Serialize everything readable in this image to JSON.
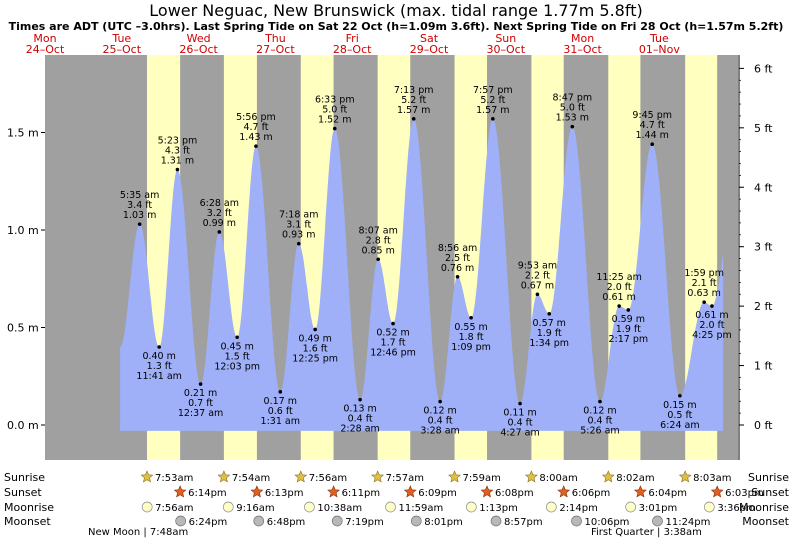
{
  "title": "Lower Neguac, New Brunswick (max. tidal range 1.77m 5.8ft)",
  "subtitle": "Times are ADT (UTC –3.0hrs). Last Spring Tide on Sat 22 Oct (h=1.09m 3.6ft). Next Spring Tide on Fri 28 Oct (h=1.57m 5.2ft)",
  "days": [
    {
      "name": "Mon",
      "date": "24–Oct"
    },
    {
      "name": "Tue",
      "date": "25–Oct"
    },
    {
      "name": "Wed",
      "date": "26–Oct"
    },
    {
      "name": "Thu",
      "date": "27–Oct"
    },
    {
      "name": "Fri",
      "date": "28–Oct"
    },
    {
      "name": "Sat",
      "date": "29–Oct"
    },
    {
      "name": "Sun",
      "date": "30–Oct"
    },
    {
      "name": "Mon",
      "date": "31–Oct"
    },
    {
      "name": "Tue",
      "date": "01–Nov"
    }
  ],
  "chart_data": {
    "type": "area",
    "x_unit": "hours from Mon 24-Oct 00:00",
    "ylim_m": [
      -0.2,
      1.9
    ],
    "y_ticks_m": [
      "0.0 m",
      "0.5 m",
      "1.0 m",
      "1.5 m"
    ],
    "y_ticks_ft": [
      "0 ft",
      "1 ft",
      "2 ft",
      "3 ft",
      "4 ft",
      "5 ft",
      "6 ft"
    ],
    "colors": {
      "day": "#ffffc0",
      "night": "#a0a0a0",
      "water": "#9fb0f8"
    },
    "tides": [
      {
        "t": 29.58,
        "h": 1.03,
        "time": "5:35 am",
        "ft": "3.4 ft",
        "m": "1.03 m",
        "type": "high"
      },
      {
        "t": 35.68,
        "h": 0.4,
        "time": "11:41 am",
        "ft": "1.3 ft",
        "m": "0.40 m",
        "type": "low"
      },
      {
        "t": 41.38,
        "h": 1.31,
        "time": "5:23 pm",
        "ft": "4.3 ft",
        "m": "1.31 m",
        "type": "high"
      },
      {
        "t": 48.62,
        "h": 0.21,
        "time": "12:37 am",
        "ft": "0.7 ft",
        "m": "0.21 m",
        "type": "low"
      },
      {
        "t": 54.47,
        "h": 0.99,
        "time": "6:28 am",
        "ft": "3.2 ft",
        "m": "0.99 m",
        "type": "high"
      },
      {
        "t": 60.05,
        "h": 0.45,
        "time": "12:03 pm",
        "ft": "1.5 ft",
        "m": "0.45 m",
        "type": "low"
      },
      {
        "t": 65.93,
        "h": 1.43,
        "time": "5:56 pm",
        "ft": "4.7 ft",
        "m": "1.43 m",
        "type": "high"
      },
      {
        "t": 73.52,
        "h": 0.17,
        "time": "1:31 am",
        "ft": "0.6 ft",
        "m": "0.17 m",
        "type": "low"
      },
      {
        "t": 79.3,
        "h": 0.93,
        "time": "7:18 am",
        "ft": "3.1 ft",
        "m": "0.93 m",
        "type": "high"
      },
      {
        "t": 84.42,
        "h": 0.49,
        "time": "12:25 pm",
        "ft": "1.6 ft",
        "m": "0.49 m",
        "type": "low"
      },
      {
        "t": 90.55,
        "h": 1.52,
        "time": "6:33 pm",
        "ft": "5.0 ft",
        "m": "1.52 m",
        "type": "high"
      },
      {
        "t": 98.47,
        "h": 0.13,
        "time": "2:28 am",
        "ft": "0.4 ft",
        "m": "0.13 m",
        "type": "low"
      },
      {
        "t": 104.12,
        "h": 0.85,
        "time": "8:07 am",
        "ft": "2.8 ft",
        "m": "0.85 m",
        "type": "high"
      },
      {
        "t": 108.77,
        "h": 0.52,
        "time": "12:46 pm",
        "ft": "1.7 ft",
        "m": "0.52 m",
        "type": "low"
      },
      {
        "t": 115.22,
        "h": 1.57,
        "time": "7:13 pm",
        "ft": "5.2 ft",
        "m": "1.57 m",
        "type": "high"
      },
      {
        "t": 123.47,
        "h": 0.12,
        "time": "3:28 am",
        "ft": "0.4 ft",
        "m": "0.12 m",
        "type": "low"
      },
      {
        "t": 128.93,
        "h": 0.76,
        "time": "8:56 am",
        "ft": "2.5 ft",
        "m": "0.76 m",
        "type": "high"
      },
      {
        "t": 133.15,
        "h": 0.55,
        "time": "1:09 pm",
        "ft": "1.8 ft",
        "m": "0.55 m",
        "type": "low"
      },
      {
        "t": 139.95,
        "h": 1.57,
        "time": "7:57 pm",
        "ft": "5.2 ft",
        "m": "1.57 m",
        "type": "high"
      },
      {
        "t": 148.45,
        "h": 0.11,
        "time": "4:27 am",
        "ft": "0.4 ft",
        "m": "0.11 m",
        "type": "low"
      },
      {
        "t": 153.88,
        "h": 0.67,
        "time": "9:53 am",
        "ft": "2.2 ft",
        "m": "0.67 m",
        "type": "high"
      },
      {
        "t": 157.57,
        "h": 0.57,
        "time": "1:34 pm",
        "ft": "1.9 ft",
        "m": "0.57 m",
        "type": "low"
      },
      {
        "t": 164.78,
        "h": 1.53,
        "time": "8:47 pm",
        "ft": "5.0 ft",
        "m": "1.53 m",
        "type": "high"
      },
      {
        "t": 173.43,
        "h": 0.12,
        "time": "5:26 am",
        "ft": "0.4 ft",
        "m": "0.12 m",
        "type": "low"
      },
      {
        "t": 179.42,
        "h": 0.61,
        "time": "11:25 am",
        "ft": "2.0 ft",
        "m": "0.61 m",
        "type": "high"
      },
      {
        "t": 182.28,
        "h": 0.59,
        "time": "2:17 pm",
        "ft": "1.9 ft",
        "m": "0.59 m",
        "type": "low"
      },
      {
        "t": 189.75,
        "h": 1.44,
        "time": "9:45 pm",
        "ft": "4.7 ft",
        "m": "1.44 m",
        "type": "high"
      },
      {
        "t": 198.4,
        "h": 0.15,
        "time": "6:24 am",
        "ft": "0.5 ft",
        "m": "0.15 m",
        "type": "low"
      },
      {
        "t": 205.98,
        "h": 0.63,
        "time": "1:59 pm",
        "ft": "2.1 ft",
        "m": "0.63 m",
        "type": "high"
      },
      {
        "t": 208.42,
        "h": 0.61,
        "time": "4:25 pm",
        "ft": "2.0 ft",
        "m": "0.61 m",
        "type": "low"
      }
    ],
    "sun": [
      {
        "rise": "7:53am",
        "set": "6:14pm",
        "rt": 31.88,
        "st": 42.23
      },
      {
        "rise": "7:54am",
        "set": "6:13pm",
        "rt": 55.9,
        "st": 66.22
      },
      {
        "rise": "7:56am",
        "set": "6:11pm",
        "rt": 79.93,
        "st": 90.18
      },
      {
        "rise": "7:57am",
        "set": "6:09pm",
        "rt": 103.95,
        "st": 114.15
      },
      {
        "rise": "7:59am",
        "set": "6:08pm",
        "rt": 127.98,
        "st": 138.13
      },
      {
        "rise": "8:00am",
        "set": "6:06pm",
        "rt": 152.0,
        "st": 162.1
      },
      {
        "rise": "8:02am",
        "set": "6:04pm",
        "rt": 176.03,
        "st": 186.07
      },
      {
        "rise": "8:03am",
        "set": "6:03pm",
        "rt": 200.05,
        "st": 210.05
      }
    ],
    "moonrise": [
      {
        "t": 31.93,
        "label": "7:56am"
      },
      {
        "t": 57.27,
        "label": "9:16am"
      },
      {
        "t": 82.63,
        "label": "10:38am"
      },
      {
        "t": 107.98,
        "label": "11:59am"
      },
      {
        "t": 133.22,
        "label": "1:13pm"
      },
      {
        "t": 158.23,
        "label": "2:14pm"
      },
      {
        "t": 183.02,
        "label": "3:01pm"
      },
      {
        "t": 207.6,
        "label": "3:36pm"
      }
    ],
    "moonset": [
      {
        "t": 42.4,
        "label": "6:24pm"
      },
      {
        "t": 66.8,
        "label": "6:48pm"
      },
      {
        "t": 91.32,
        "label": "7:19pm"
      },
      {
        "t": 116.02,
        "label": "8:01pm"
      },
      {
        "t": 140.95,
        "label": "8:57pm"
      },
      {
        "t": 166.1,
        "label": "10:06pm"
      },
      {
        "t": 191.4,
        "label": "11:24pm"
      }
    ],
    "row_labels": {
      "sunrise": "Sunrise",
      "sunset": "Sunset",
      "moonrise": "Moonrise",
      "moonset": "Moonset"
    },
    "moon_phases": [
      {
        "text": "New Moon | 7:48am",
        "pos": "bottom-left"
      },
      {
        "text": "First Quarter | 3:38am",
        "pos": "bottom-right"
      }
    ]
  }
}
